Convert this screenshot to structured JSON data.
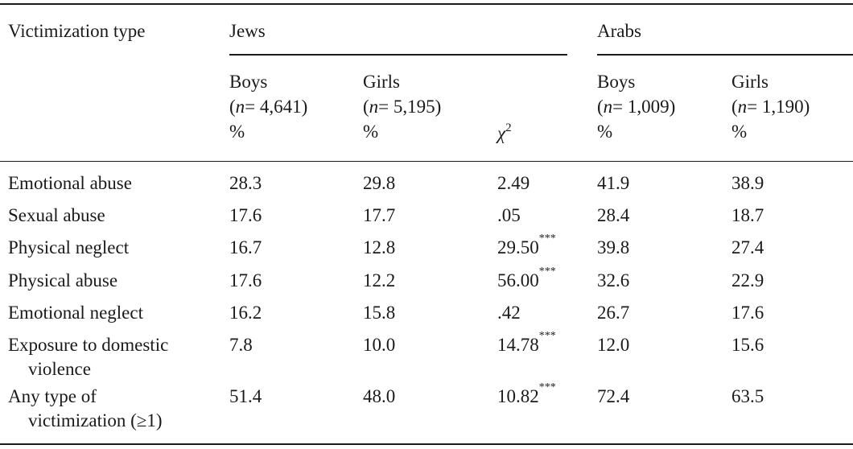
{
  "table": {
    "stub_header": "Victimization type",
    "groups": [
      {
        "label": "Jews"
      },
      {
        "label": "Arabs"
      }
    ],
    "columns": [
      {
        "label": "Boys",
        "n_italic": "n",
        "n_value": "= 4,641",
        "unit": "%"
      },
      {
        "label": "Girls",
        "n_italic": "n",
        "n_value": "= 5,195",
        "unit": "%"
      },
      {
        "label": "χ",
        "exponent": "2"
      },
      {
        "label": "Boys",
        "n_italic": "n",
        "n_value": "= 1,009",
        "unit": "%"
      },
      {
        "label": "Girls",
        "n_italic": "n",
        "n_value": "= 1,190",
        "unit": "%"
      }
    ],
    "rows": [
      {
        "type": [
          "Emotional abuse"
        ],
        "jews_boys": "28.3",
        "jews_girls": "29.8",
        "chi2": "2.49",
        "sig": "",
        "arabs_boys": "41.9",
        "arabs_girls": "38.9"
      },
      {
        "type": [
          "Sexual abuse"
        ],
        "jews_boys": "17.6",
        "jews_girls": "17.7",
        "chi2": ".05",
        "sig": "",
        "arabs_boys": "28.4",
        "arabs_girls": "18.7"
      },
      {
        "type": [
          "Physical neglect"
        ],
        "jews_boys": "16.7",
        "jews_girls": "12.8",
        "chi2": "29.50",
        "sig": "***",
        "arabs_boys": "39.8",
        "arabs_girls": "27.4"
      },
      {
        "type": [
          "Physical abuse"
        ],
        "jews_boys": "17.6",
        "jews_girls": "12.2",
        "chi2": "56.00",
        "sig": "***",
        "arabs_boys": "32.6",
        "arabs_girls": "22.9"
      },
      {
        "type": [
          "Emotional neglect"
        ],
        "jews_boys": "16.2",
        "jews_girls": "15.8",
        "chi2": ".42",
        "sig": "",
        "arabs_boys": "26.7",
        "arabs_girls": "17.6"
      },
      {
        "type": [
          "Exposure to domestic",
          "violence"
        ],
        "jews_boys": "7.8",
        "jews_girls": "10.0",
        "chi2": "14.78",
        "sig": "***",
        "arabs_boys": "12.0",
        "arabs_girls": "15.6"
      },
      {
        "type": [
          "Any type of",
          "victimization (≥1)"
        ],
        "jews_boys": "51.4",
        "jews_girls": "48.0",
        "chi2": "10.82",
        "sig": "***",
        "arabs_boys": "72.4",
        "arabs_girls": "63.5"
      }
    ]
  }
}
